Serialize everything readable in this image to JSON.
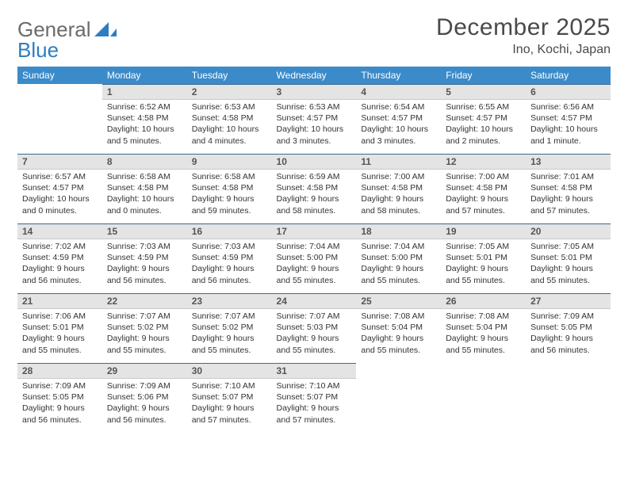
{
  "logo": {
    "text_gray": "General",
    "text_blue": "Blue"
  },
  "title": "December 2025",
  "location": "Ino, Kochi, Japan",
  "colors": {
    "header_bg": "#3b8bca",
    "header_text": "#ffffff",
    "daynum_bg": "#e4e4e4",
    "daynum_border_top": "#3b6a90",
    "text": "#333333",
    "logo_gray": "#6b6b6b",
    "logo_blue": "#2e7dc2"
  },
  "weekdays": [
    "Sunday",
    "Monday",
    "Tuesday",
    "Wednesday",
    "Thursday",
    "Friday",
    "Saturday"
  ],
  "weeks": [
    [
      {
        "n": "",
        "sunrise": "",
        "sunset": "",
        "day1": "",
        "day2": ""
      },
      {
        "n": "1",
        "sunrise": "Sunrise: 6:52 AM",
        "sunset": "Sunset: 4:58 PM",
        "day1": "Daylight: 10 hours",
        "day2": "and 5 minutes."
      },
      {
        "n": "2",
        "sunrise": "Sunrise: 6:53 AM",
        "sunset": "Sunset: 4:58 PM",
        "day1": "Daylight: 10 hours",
        "day2": "and 4 minutes."
      },
      {
        "n": "3",
        "sunrise": "Sunrise: 6:53 AM",
        "sunset": "Sunset: 4:57 PM",
        "day1": "Daylight: 10 hours",
        "day2": "and 3 minutes."
      },
      {
        "n": "4",
        "sunrise": "Sunrise: 6:54 AM",
        "sunset": "Sunset: 4:57 PM",
        "day1": "Daylight: 10 hours",
        "day2": "and 3 minutes."
      },
      {
        "n": "5",
        "sunrise": "Sunrise: 6:55 AM",
        "sunset": "Sunset: 4:57 PM",
        "day1": "Daylight: 10 hours",
        "day2": "and 2 minutes."
      },
      {
        "n": "6",
        "sunrise": "Sunrise: 6:56 AM",
        "sunset": "Sunset: 4:57 PM",
        "day1": "Daylight: 10 hours",
        "day2": "and 1 minute."
      }
    ],
    [
      {
        "n": "7",
        "sunrise": "Sunrise: 6:57 AM",
        "sunset": "Sunset: 4:57 PM",
        "day1": "Daylight: 10 hours",
        "day2": "and 0 minutes."
      },
      {
        "n": "8",
        "sunrise": "Sunrise: 6:58 AM",
        "sunset": "Sunset: 4:58 PM",
        "day1": "Daylight: 10 hours",
        "day2": "and 0 minutes."
      },
      {
        "n": "9",
        "sunrise": "Sunrise: 6:58 AM",
        "sunset": "Sunset: 4:58 PM",
        "day1": "Daylight: 9 hours",
        "day2": "and 59 minutes."
      },
      {
        "n": "10",
        "sunrise": "Sunrise: 6:59 AM",
        "sunset": "Sunset: 4:58 PM",
        "day1": "Daylight: 9 hours",
        "day2": "and 58 minutes."
      },
      {
        "n": "11",
        "sunrise": "Sunrise: 7:00 AM",
        "sunset": "Sunset: 4:58 PM",
        "day1": "Daylight: 9 hours",
        "day2": "and 58 minutes."
      },
      {
        "n": "12",
        "sunrise": "Sunrise: 7:00 AM",
        "sunset": "Sunset: 4:58 PM",
        "day1": "Daylight: 9 hours",
        "day2": "and 57 minutes."
      },
      {
        "n": "13",
        "sunrise": "Sunrise: 7:01 AM",
        "sunset": "Sunset: 4:58 PM",
        "day1": "Daylight: 9 hours",
        "day2": "and 57 minutes."
      }
    ],
    [
      {
        "n": "14",
        "sunrise": "Sunrise: 7:02 AM",
        "sunset": "Sunset: 4:59 PM",
        "day1": "Daylight: 9 hours",
        "day2": "and 56 minutes."
      },
      {
        "n": "15",
        "sunrise": "Sunrise: 7:03 AM",
        "sunset": "Sunset: 4:59 PM",
        "day1": "Daylight: 9 hours",
        "day2": "and 56 minutes."
      },
      {
        "n": "16",
        "sunrise": "Sunrise: 7:03 AM",
        "sunset": "Sunset: 4:59 PM",
        "day1": "Daylight: 9 hours",
        "day2": "and 56 minutes."
      },
      {
        "n": "17",
        "sunrise": "Sunrise: 7:04 AM",
        "sunset": "Sunset: 5:00 PM",
        "day1": "Daylight: 9 hours",
        "day2": "and 55 minutes."
      },
      {
        "n": "18",
        "sunrise": "Sunrise: 7:04 AM",
        "sunset": "Sunset: 5:00 PM",
        "day1": "Daylight: 9 hours",
        "day2": "and 55 minutes."
      },
      {
        "n": "19",
        "sunrise": "Sunrise: 7:05 AM",
        "sunset": "Sunset: 5:01 PM",
        "day1": "Daylight: 9 hours",
        "day2": "and 55 minutes."
      },
      {
        "n": "20",
        "sunrise": "Sunrise: 7:05 AM",
        "sunset": "Sunset: 5:01 PM",
        "day1": "Daylight: 9 hours",
        "day2": "and 55 minutes."
      }
    ],
    [
      {
        "n": "21",
        "sunrise": "Sunrise: 7:06 AM",
        "sunset": "Sunset: 5:01 PM",
        "day1": "Daylight: 9 hours",
        "day2": "and 55 minutes."
      },
      {
        "n": "22",
        "sunrise": "Sunrise: 7:07 AM",
        "sunset": "Sunset: 5:02 PM",
        "day1": "Daylight: 9 hours",
        "day2": "and 55 minutes."
      },
      {
        "n": "23",
        "sunrise": "Sunrise: 7:07 AM",
        "sunset": "Sunset: 5:02 PM",
        "day1": "Daylight: 9 hours",
        "day2": "and 55 minutes."
      },
      {
        "n": "24",
        "sunrise": "Sunrise: 7:07 AM",
        "sunset": "Sunset: 5:03 PM",
        "day1": "Daylight: 9 hours",
        "day2": "and 55 minutes."
      },
      {
        "n": "25",
        "sunrise": "Sunrise: 7:08 AM",
        "sunset": "Sunset: 5:04 PM",
        "day1": "Daylight: 9 hours",
        "day2": "and 55 minutes."
      },
      {
        "n": "26",
        "sunrise": "Sunrise: 7:08 AM",
        "sunset": "Sunset: 5:04 PM",
        "day1": "Daylight: 9 hours",
        "day2": "and 55 minutes."
      },
      {
        "n": "27",
        "sunrise": "Sunrise: 7:09 AM",
        "sunset": "Sunset: 5:05 PM",
        "day1": "Daylight: 9 hours",
        "day2": "and 56 minutes."
      }
    ],
    [
      {
        "n": "28",
        "sunrise": "Sunrise: 7:09 AM",
        "sunset": "Sunset: 5:05 PM",
        "day1": "Daylight: 9 hours",
        "day2": "and 56 minutes."
      },
      {
        "n": "29",
        "sunrise": "Sunrise: 7:09 AM",
        "sunset": "Sunset: 5:06 PM",
        "day1": "Daylight: 9 hours",
        "day2": "and 56 minutes."
      },
      {
        "n": "30",
        "sunrise": "Sunrise: 7:10 AM",
        "sunset": "Sunset: 5:07 PM",
        "day1": "Daylight: 9 hours",
        "day2": "and 57 minutes."
      },
      {
        "n": "31",
        "sunrise": "Sunrise: 7:10 AM",
        "sunset": "Sunset: 5:07 PM",
        "day1": "Daylight: 9 hours",
        "day2": "and 57 minutes."
      },
      {
        "n": "",
        "sunrise": "",
        "sunset": "",
        "day1": "",
        "day2": ""
      },
      {
        "n": "",
        "sunrise": "",
        "sunset": "",
        "day1": "",
        "day2": ""
      },
      {
        "n": "",
        "sunrise": "",
        "sunset": "",
        "day1": "",
        "day2": ""
      }
    ]
  ]
}
